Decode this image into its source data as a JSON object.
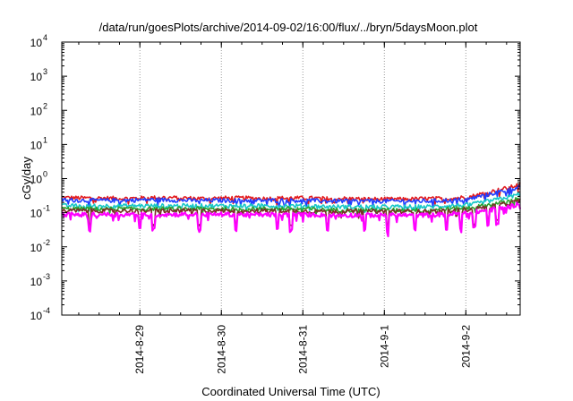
{
  "chart_data": {
    "type": "line",
    "title": "/data/run/goesPlots/archive/2014-09-02/16:00/flux/../bryn/5daysMoon.plot",
    "xlabel": "Coordinated Universal Time (UTC)",
    "ylabel": "cGy/day",
    "yscale": "log",
    "ylim": [
      0.0001,
      10000
    ],
    "xlim": [
      "2014-08-28T01:00",
      "2014-09-02T16:00"
    ],
    "grid": true,
    "y_ticks": [
      {
        "base": "10",
        "exp": "4"
      },
      {
        "base": "10",
        "exp": "3"
      },
      {
        "base": "10",
        "exp": "2"
      },
      {
        "base": "10",
        "exp": "1"
      },
      {
        "base": "10",
        "exp": "0"
      },
      {
        "base": "10",
        "exp": "-1"
      },
      {
        "base": "10",
        "exp": "-2"
      },
      {
        "base": "10",
        "exp": "-3"
      },
      {
        "base": "10",
        "exp": "-4"
      }
    ],
    "x_ticks": [
      {
        "label": "2014-8-29",
        "date": "2014-08-29T00:00"
      },
      {
        "label": "2014-8-30",
        "date": "2014-08-30T00:00"
      },
      {
        "label": "2014-8-31",
        "date": "2014-08-31T00:00"
      },
      {
        "label": "2014-9-1",
        "date": "2014-09-01T00:00"
      },
      {
        "label": "2014-9-2",
        "date": "2014-09-02T00:00"
      }
    ],
    "x": [
      "2014-08-28T01:00",
      "2014-08-28T07:00",
      "2014-08-28T13:00",
      "2014-08-28T19:00",
      "2014-08-29T01:00",
      "2014-08-29T07:00",
      "2014-08-29T13:00",
      "2014-08-29T19:00",
      "2014-08-30T01:00",
      "2014-08-30T07:00",
      "2014-08-30T13:00",
      "2014-08-30T19:00",
      "2014-08-31T01:00",
      "2014-08-31T07:00",
      "2014-08-31T13:00",
      "2014-08-31T19:00",
      "2014-09-01T01:00",
      "2014-09-01T07:00",
      "2014-09-01T13:00",
      "2014-09-01T19:00",
      "2014-09-02T01:00",
      "2014-09-02T07:00",
      "2014-09-02T13:00",
      "2014-09-02T16:00"
    ],
    "series": [
      {
        "color": "#e41a1c",
        "values": [
          0.28,
          0.27,
          0.27,
          0.26,
          0.27,
          0.28,
          0.27,
          0.26,
          0.27,
          0.27,
          0.26,
          0.27,
          0.27,
          0.26,
          0.26,
          0.25,
          0.25,
          0.25,
          0.26,
          0.26,
          0.29,
          0.4,
          0.55,
          0.68
        ]
      },
      {
        "color": "#1f3cff",
        "values": [
          0.24,
          0.23,
          0.23,
          0.23,
          0.24,
          0.24,
          0.23,
          0.23,
          0.23,
          0.23,
          0.23,
          0.23,
          0.23,
          0.22,
          0.22,
          0.22,
          0.22,
          0.22,
          0.22,
          0.23,
          0.25,
          0.35,
          0.48,
          0.6
        ]
      },
      {
        "color": "#17c7c7",
        "values": [
          0.16,
          0.16,
          0.16,
          0.16,
          0.16,
          0.16,
          0.16,
          0.16,
          0.16,
          0.16,
          0.16,
          0.16,
          0.16,
          0.15,
          0.15,
          0.15,
          0.15,
          0.15,
          0.15,
          0.16,
          0.17,
          0.22,
          0.29,
          0.36
        ]
      },
      {
        "color": "#2ca02c",
        "values": [
          0.13,
          0.13,
          0.13,
          0.13,
          0.13,
          0.13,
          0.13,
          0.13,
          0.13,
          0.13,
          0.13,
          0.13,
          0.13,
          0.12,
          0.12,
          0.12,
          0.12,
          0.12,
          0.12,
          0.13,
          0.14,
          0.17,
          0.22,
          0.27
        ]
      },
      {
        "color": "#7b2d26",
        "values": [
          0.115,
          0.115,
          0.115,
          0.115,
          0.115,
          0.115,
          0.115,
          0.115,
          0.115,
          0.115,
          0.115,
          0.115,
          0.11,
          0.11,
          0.11,
          0.11,
          0.11,
          0.11,
          0.11,
          0.115,
          0.125,
          0.15,
          0.19,
          0.23
        ]
      },
      {
        "color": "#ff00ff",
        "values": [
          0.09,
          0.088,
          0.09,
          0.088,
          0.09,
          0.088,
          0.09,
          0.088,
          0.09,
          0.088,
          0.088,
          0.088,
          0.088,
          0.085,
          0.085,
          0.085,
          0.085,
          0.085,
          0.085,
          0.09,
          0.1,
          0.12,
          0.15,
          0.19
        ]
      }
    ]
  }
}
